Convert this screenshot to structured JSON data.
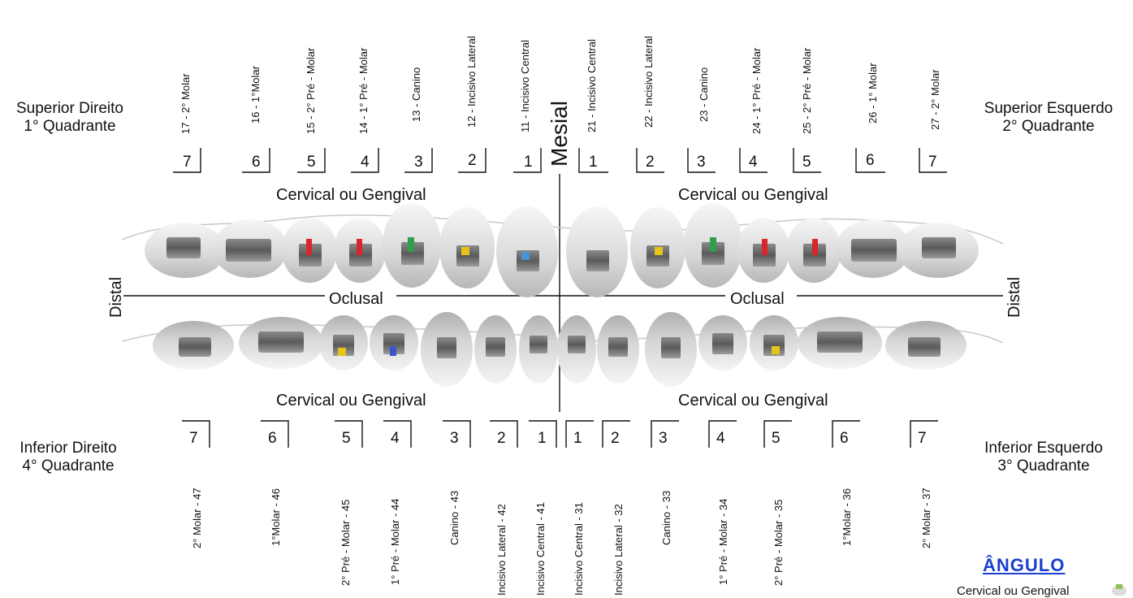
{
  "quadrants": {
    "upper_right": {
      "line1": "Superior Direito",
      "line2": "1° Quadrante"
    },
    "upper_left": {
      "line1": "Superior Esquerdo",
      "line2": "2° Quadrante"
    },
    "lower_right": {
      "line1": "Inferior Direito",
      "line2": "4° Quadrante"
    },
    "lower_left": {
      "line1": "Inferior Esquerdo",
      "line2": "3° Quadrante"
    }
  },
  "axis_labels": {
    "mesial": "Mesial",
    "distal_left": "Distal",
    "distal_right": "Distal",
    "oclusal_left": "Oclusal",
    "oclusal_right": "Oclusal",
    "cervical_upper_left": "Cervical ou Gengival",
    "cervical_upper_right": "Cervical ou Gengival",
    "cervical_lower_left": "Cervical ou Gengival",
    "cervical_lower_right": "Cervical ou Gengival"
  },
  "upper_teeth": [
    {
      "label": "17 - 2° Molar",
      "number": "7"
    },
    {
      "label": "16 - 1°Molar",
      "number": "6"
    },
    {
      "label": "15 - 2° Pré - Molar",
      "number": "5"
    },
    {
      "label": "14 - 1° Pré - Molar",
      "number": "4"
    },
    {
      "label": "13 - Canino",
      "number": "3"
    },
    {
      "label": "12 - Incisivo Lateral",
      "number": "2"
    },
    {
      "label": "11 - Incisivo Central",
      "number": "1"
    },
    {
      "label": "21 - Incisivo Central",
      "number": "1"
    },
    {
      "label": "22 - Incisivo Lateral",
      "number": "2"
    },
    {
      "label": "23 - Canino",
      "number": "3"
    },
    {
      "label": "24 - 1° Pré - Molar",
      "number": "4"
    },
    {
      "label": "25 - 2° Pré - Molar",
      "number": "5"
    },
    {
      "label": "26 - 1° Molar",
      "number": "6"
    },
    {
      "label": "27 - 2° Molar",
      "number": "7"
    }
  ],
  "lower_teeth": [
    {
      "label": "2° Molar - 47",
      "number": "7"
    },
    {
      "label": "1°Molar - 46",
      "number": "6"
    },
    {
      "label": "2° Pré - Molar - 45",
      "number": "5"
    },
    {
      "label": "1° Pré - Molar - 44",
      "number": "4"
    },
    {
      "label": "Canino - 43",
      "number": "3"
    },
    {
      "label": "Incisivo Lateral - 42",
      "number": "2"
    },
    {
      "label": "Incisivo Central - 41",
      "number": "1"
    },
    {
      "label": "Incisivo Central - 31",
      "number": "1"
    },
    {
      "label": "Incisivo Lateral - 32",
      "number": "2"
    },
    {
      "label": "Canino - 33",
      "number": "3"
    },
    {
      "label": "1° Pré - Molar - 34",
      "number": "4"
    },
    {
      "label": "2° Pré - Molar - 35",
      "number": "5"
    },
    {
      "label": "1°Molar - 36",
      "number": "6"
    },
    {
      "label": "2° Molar - 37",
      "number": "7"
    }
  ],
  "link": {
    "label": "ÂNGULO"
  },
  "footer_cut_text": "Cervical ou Gengival",
  "colors": {
    "link": "#1a3fd1",
    "red_module": "#d8262b",
    "green_module": "#2ea04a",
    "yellow_module": "#e6c21a",
    "blue_module": "#4d90d8"
  }
}
